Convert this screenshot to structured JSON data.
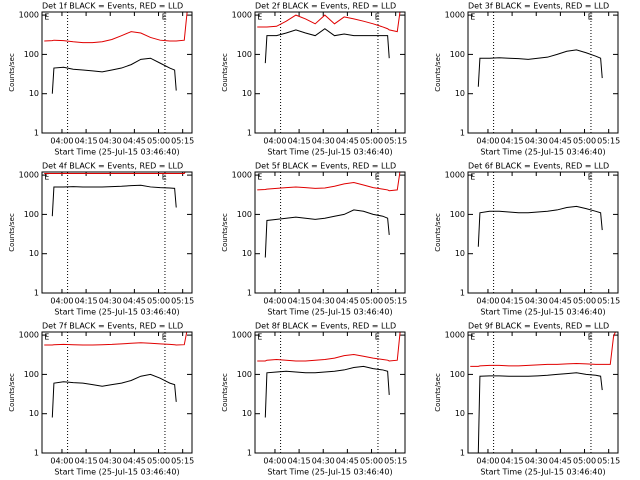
{
  "chart_data": [
    {
      "type": "line",
      "title": "Det 1f BLACK = Events, RED = LLD",
      "xlabel": "Start Time (25-Jul-15 03:46:40)",
      "ylabel": "Counts/sec",
      "x": [
        229,
        234,
        235,
        241,
        247,
        253,
        259,
        265,
        271,
        277,
        283,
        289,
        295,
        301,
        307,
        310,
        311,
        316,
        318,
        320
      ],
      "series": [
        {
          "color": "#000000",
          "values": [
            null,
            10,
            45,
            47,
            42,
            40,
            38,
            36,
            40,
            45,
            55,
            75,
            80,
            60,
            45,
            40,
            12,
            null,
            null,
            null
          ]
        },
        {
          "color": "#e00000",
          "values": [
            220,
            225,
            230,
            225,
            210,
            200,
            200,
            210,
            240,
            300,
            380,
            350,
            270,
            230,
            220,
            220,
            220,
            230,
            1500,
            1500
          ]
        }
      ],
      "xlim": [
        227.6,
        320.8
      ],
      "xticks": [
        {
          "value": 240,
          "label": "04:00"
        },
        {
          "value": 255,
          "label": "04:15"
        },
        {
          "value": 270,
          "label": "04:30"
        },
        {
          "value": 285,
          "label": "04:45"
        },
        {
          "value": 300,
          "label": "05:00"
        },
        {
          "value": 315,
          "label": "05:15"
        }
      ],
      "ylim": [
        1,
        1200
      ],
      "yticks": [
        1,
        10,
        100,
        1000
      ],
      "log_y": true,
      "vlines": [
        243.5,
        304
      ],
      "annotations": [
        {
          "text": "E",
          "x": 229
        },
        {
          "text": "E",
          "x": 302
        }
      ]
    },
    {
      "type": "line",
      "title": "Det 2f BLACK = Events, RED = LLD",
      "xlabel": "Start Time (25-Jul-15 03:46:40)",
      "ylabel": "Counts/sec",
      "x": [
        229,
        234,
        235,
        241,
        247,
        253,
        259,
        265,
        271,
        277,
        283,
        289,
        295,
        301,
        307,
        310,
        311,
        316,
        318,
        320
      ],
      "series": [
        {
          "color": "#000000",
          "values": [
            null,
            60,
            300,
            300,
            350,
            420,
            350,
            300,
            450,
            300,
            330,
            300,
            300,
            300,
            300,
            300,
            80,
            null,
            null,
            null
          ]
        },
        {
          "color": "#e00000",
          "values": [
            500,
            500,
            500,
            520,
            700,
            1000,
            800,
            600,
            1000,
            600,
            900,
            800,
            700,
            600,
            500,
            450,
            420,
            380,
            1500,
            1500
          ]
        }
      ],
      "xlim": [
        227.6,
        320.8
      ],
      "xticks": [
        {
          "value": 240,
          "label": "04:00"
        },
        {
          "value": 255,
          "label": "04:15"
        },
        {
          "value": 270,
          "label": "04:30"
        },
        {
          "value": 285,
          "label": "04:45"
        },
        {
          "value": 300,
          "label": "05:00"
        },
        {
          "value": 315,
          "label": "05:15"
        }
      ],
      "ylim": [
        1,
        1200
      ],
      "yticks": [
        1,
        10,
        100,
        1000
      ],
      "log_y": true,
      "vlines": [
        243.5,
        304
      ],
      "annotations": [
        {
          "text": "E",
          "x": 229
        },
        {
          "text": "E",
          "x": 302
        }
      ]
    },
    {
      "type": "line",
      "title": "Det 3f BLACK = Events, RED = LLD",
      "xlabel": "Start Time (25-Jul-15 03:46:40)",
      "ylabel": "Counts/sec",
      "x": [
        229,
        234,
        235,
        241,
        247,
        253,
        259,
        265,
        271,
        277,
        283,
        289,
        295,
        301,
        307,
        310,
        311,
        316,
        318,
        320
      ],
      "series": [
        {
          "color": "#000000",
          "values": [
            null,
            15,
            80,
            80,
            82,
            80,
            78,
            75,
            80,
            85,
            100,
            120,
            130,
            110,
            90,
            80,
            25,
            null,
            null,
            null
          ]
        }
      ],
      "xlim": [
        227.6,
        320.8
      ],
      "xticks": [
        {
          "value": 240,
          "label": "04:00"
        },
        {
          "value": 255,
          "label": "04:15"
        },
        {
          "value": 270,
          "label": "04:30"
        },
        {
          "value": 285,
          "label": "04:45"
        },
        {
          "value": 300,
          "label": "05:00"
        },
        {
          "value": 315,
          "label": "05:15"
        }
      ],
      "ylim": [
        1,
        1200
      ],
      "yticks": [
        1,
        10,
        100,
        1000
      ],
      "log_y": true,
      "vlines": [
        243.5,
        304
      ],
      "annotations": [
        {
          "text": "E",
          "x": 229
        },
        {
          "text": "E",
          "x": 302
        }
      ]
    },
    {
      "type": "line",
      "title": "Det 4f BLACK = Events, RED = LLD",
      "xlabel": "Start Time (25-Jul-15 03:46:40)",
      "ylabel": "Counts/sec",
      "x": [
        229,
        234,
        235,
        241,
        247,
        253,
        259,
        265,
        271,
        277,
        283,
        289,
        295,
        301,
        307,
        310,
        311,
        316,
        318,
        320
      ],
      "series": [
        {
          "color": "#000000",
          "values": [
            null,
            90,
            500,
            500,
            510,
            500,
            500,
            500,
            510,
            520,
            540,
            550,
            500,
            480,
            470,
            460,
            150,
            null,
            null,
            null
          ]
        },
        {
          "color": "#e00000",
          "values": [
            1100,
            1100,
            1100,
            1100,
            1100,
            1100,
            1100,
            1100,
            1100,
            1100,
            1100,
            1100,
            1100,
            1100,
            1100,
            1100,
            1100,
            1100,
            1500,
            1500
          ]
        }
      ],
      "xlim": [
        227.6,
        320.8
      ],
      "xticks": [
        {
          "value": 240,
          "label": "04:00"
        },
        {
          "value": 255,
          "label": "04:15"
        },
        {
          "value": 270,
          "label": "04:30"
        },
        {
          "value": 285,
          "label": "04:45"
        },
        {
          "value": 300,
          "label": "05:00"
        },
        {
          "value": 315,
          "label": "05:15"
        }
      ],
      "ylim": [
        1,
        1200
      ],
      "yticks": [
        1,
        10,
        100,
        1000
      ],
      "log_y": true,
      "vlines": [
        243.5,
        304
      ],
      "annotations": [
        {
          "text": "E",
          "x": 229
        },
        {
          "text": "E",
          "x": 302
        }
      ]
    },
    {
      "type": "line",
      "title": "Det 5f BLACK = Events, RED = LLD",
      "xlabel": "Start Time (25-Jul-15 03:46:40)",
      "ylabel": "Counts/sec",
      "x": [
        229,
        234,
        235,
        241,
        247,
        253,
        259,
        265,
        271,
        277,
        283,
        289,
        295,
        301,
        307,
        310,
        311,
        316,
        318,
        320
      ],
      "series": [
        {
          "color": "#000000",
          "values": [
            null,
            8,
            70,
            75,
            80,
            85,
            80,
            75,
            80,
            90,
            100,
            130,
            120,
            100,
            90,
            80,
            30,
            null,
            null,
            null
          ]
        },
        {
          "color": "#e00000",
          "values": [
            420,
            430,
            440,
            460,
            480,
            500,
            480,
            460,
            470,
            520,
            600,
            650,
            560,
            480,
            440,
            420,
            400,
            420,
            1500,
            1500
          ]
        }
      ],
      "xlim": [
        227.6,
        320.8
      ],
      "xticks": [
        {
          "value": 240,
          "label": "04:00"
        },
        {
          "value": 255,
          "label": "04:15"
        },
        {
          "value": 270,
          "label": "04:30"
        },
        {
          "value": 285,
          "label": "04:45"
        },
        {
          "value": 300,
          "label": "05:00"
        },
        {
          "value": 315,
          "label": "05:15"
        }
      ],
      "ylim": [
        1,
        1200
      ],
      "yticks": [
        1,
        10,
        100,
        1000
      ],
      "log_y": true,
      "vlines": [
        243.5,
        304
      ],
      "annotations": [
        {
          "text": "E",
          "x": 229
        },
        {
          "text": "E",
          "x": 302
        }
      ]
    },
    {
      "type": "line",
      "title": "Det 6f BLACK = Events, RED = LLD",
      "xlabel": "Start Time (25-Jul-15 03:46:40)",
      "ylabel": "Counts/sec",
      "x": [
        229,
        234,
        235,
        241,
        247,
        253,
        259,
        265,
        271,
        277,
        283,
        289,
        295,
        301,
        307,
        310,
        311,
        316,
        318,
        320
      ],
      "series": [
        {
          "color": "#000000",
          "values": [
            null,
            15,
            110,
            120,
            120,
            115,
            110,
            110,
            115,
            120,
            130,
            150,
            160,
            140,
            120,
            110,
            40,
            null,
            null,
            null
          ]
        }
      ],
      "xlim": [
        227.6,
        320.8
      ],
      "xticks": [
        {
          "value": 240,
          "label": "04:00"
        },
        {
          "value": 255,
          "label": "04:15"
        },
        {
          "value": 270,
          "label": "04:30"
        },
        {
          "value": 285,
          "label": "04:45"
        },
        {
          "value": 300,
          "label": "05:00"
        },
        {
          "value": 315,
          "label": "05:15"
        }
      ],
      "ylim": [
        1,
        1200
      ],
      "yticks": [
        1,
        10,
        100,
        1000
      ],
      "log_y": true,
      "vlines": [
        243.5,
        304
      ],
      "annotations": [
        {
          "text": "E",
          "x": 229
        },
        {
          "text": "E",
          "x": 302
        }
      ]
    },
    {
      "type": "line",
      "title": "Det 7f BLACK = Events, RED = LLD",
      "xlabel": "Start Time (25-Jul-15 03:46:40)",
      "ylabel": "Counts/sec",
      "x": [
        229,
        234,
        235,
        241,
        247,
        253,
        259,
        265,
        271,
        277,
        283,
        289,
        295,
        301,
        307,
        310,
        311,
        316,
        318,
        320
      ],
      "series": [
        {
          "color": "#000000",
          "values": [
            null,
            8,
            60,
            65,
            62,
            60,
            55,
            50,
            55,
            60,
            70,
            90,
            100,
            80,
            60,
            55,
            20,
            null,
            null,
            null
          ]
        },
        {
          "color": "#e00000",
          "values": [
            560,
            560,
            570,
            580,
            570,
            560,
            560,
            570,
            580,
            600,
            620,
            640,
            620,
            600,
            580,
            570,
            560,
            570,
            1500,
            1500
          ]
        }
      ],
      "xlim": [
        227.6,
        320.8
      ],
      "xticks": [
        {
          "value": 240,
          "label": "04:00"
        },
        {
          "value": 255,
          "label": "04:15"
        },
        {
          "value": 270,
          "label": "04:30"
        },
        {
          "value": 285,
          "label": "04:45"
        },
        {
          "value": 300,
          "label": "05:00"
        },
        {
          "value": 315,
          "label": "05:15"
        }
      ],
      "ylim": [
        1,
        1200
      ],
      "yticks": [
        1,
        10,
        100,
        1000
      ],
      "log_y": true,
      "vlines": [
        243.5,
        304
      ],
      "annotations": [
        {
          "text": "E",
          "x": 229
        },
        {
          "text": "E",
          "x": 302
        }
      ]
    },
    {
      "type": "line",
      "title": "Det 8f BLACK = Events, RED = LLD",
      "xlabel": "Start Time (25-Jul-15 03:46:40)",
      "ylabel": "Counts/sec",
      "x": [
        229,
        234,
        235,
        241,
        247,
        253,
        259,
        265,
        271,
        277,
        283,
        289,
        295,
        301,
        307,
        310,
        311,
        316,
        318,
        320
      ],
      "series": [
        {
          "color": "#000000",
          "values": [
            null,
            8,
            110,
            115,
            120,
            115,
            110,
            110,
            115,
            120,
            130,
            150,
            160,
            140,
            130,
            120,
            30,
            null,
            null,
            null
          ]
        },
        {
          "color": "#e00000",
          "values": [
            220,
            220,
            230,
            240,
            230,
            220,
            220,
            230,
            240,
            260,
            300,
            320,
            290,
            260,
            240,
            230,
            220,
            230,
            1500,
            1500
          ]
        }
      ],
      "xlim": [
        227.6,
        320.8
      ],
      "xticks": [
        {
          "value": 240,
          "label": "04:00"
        },
        {
          "value": 255,
          "label": "04:15"
        },
        {
          "value": 270,
          "label": "04:30"
        },
        {
          "value": 285,
          "label": "04:45"
        },
        {
          "value": 300,
          "label": "05:00"
        },
        {
          "value": 315,
          "label": "05:15"
        }
      ],
      "ylim": [
        1,
        1200
      ],
      "yticks": [
        1,
        10,
        100,
        1000
      ],
      "log_y": true,
      "vlines": [
        243.5,
        304
      ],
      "annotations": [
        {
          "text": "E",
          "x": 229
        },
        {
          "text": "E",
          "x": 302
        }
      ]
    },
    {
      "type": "line",
      "title": "Det 9f BLACK = Events, RED = LLD",
      "xlabel": "Start Time (25-Jul-15 03:46:40)",
      "ylabel": "Counts/sec",
      "x": [
        229,
        234,
        235,
        241,
        247,
        253,
        259,
        265,
        271,
        277,
        283,
        289,
        295,
        301,
        307,
        310,
        311,
        316,
        318,
        320
      ],
      "series": [
        {
          "color": "#000000",
          "values": [
            null,
            1,
            90,
            92,
            92,
            90,
            90,
            90,
            92,
            95,
            100,
            105,
            110,
            100,
            95,
            90,
            40,
            null,
            null,
            null
          ]
        },
        {
          "color": "#e00000",
          "values": [
            160,
            160,
            165,
            170,
            170,
            165,
            165,
            170,
            175,
            180,
            180,
            185,
            190,
            185,
            180,
            180,
            180,
            180,
            900,
            1500
          ]
        }
      ],
      "xlim": [
        227.6,
        320.8
      ],
      "xticks": [
        {
          "value": 240,
          "label": "04:00"
        },
        {
          "value": 255,
          "label": "04:15"
        },
        {
          "value": 270,
          "label": "04:30"
        },
        {
          "value": 285,
          "label": "04:45"
        },
        {
          "value": 300,
          "label": "05:00"
        },
        {
          "value": 315,
          "label": "05:15"
        }
      ],
      "ylim": [
        1,
        1200
      ],
      "yticks": [
        1,
        10,
        100,
        1000
      ],
      "log_y": true,
      "vlines": [
        243.5,
        304
      ],
      "annotations": [
        {
          "text": "E",
          "x": 229
        },
        {
          "text": "E",
          "x": 302
        }
      ]
    }
  ]
}
